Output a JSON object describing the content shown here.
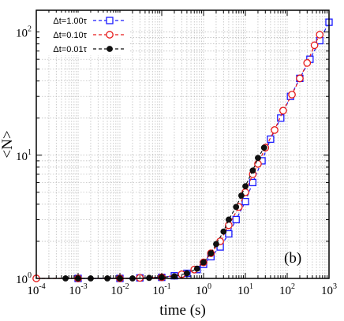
{
  "chart_data": {
    "type": "line",
    "xlabel": "time (s)",
    "ylabel": "<N>",
    "panel_label": "(b)",
    "xscale": "log",
    "yscale": "log",
    "xlim": [
      0.0001,
      1000
    ],
    "ylim": [
      1,
      150
    ],
    "grid": true,
    "legend_position": "top-left",
    "x_ticks": [
      {
        "base": "10",
        "exp": "-4"
      },
      {
        "base": "10",
        "exp": "-3"
      },
      {
        "base": "10",
        "exp": "-2"
      },
      {
        "base": "10",
        "exp": "-1"
      },
      {
        "base": "10",
        "exp": "0"
      },
      {
        "base": "10",
        "exp": "1"
      },
      {
        "base": "10",
        "exp": "2"
      },
      {
        "base": "10",
        "exp": "3"
      }
    ],
    "y_ticks": [
      {
        "base": "10",
        "exp": "0"
      },
      {
        "base": "10",
        "exp": "1"
      },
      {
        "base": "10",
        "exp": "2"
      }
    ],
    "series": [
      {
        "name": "Δt=1.00τ",
        "color": "#1a1aff",
        "marker": "square-open",
        "x": [
          0.001,
          0.01,
          0.03,
          0.1,
          0.2,
          0.4,
          0.7,
          1.0,
          1.5,
          2.5,
          4.0,
          6.0,
          10,
          15,
          25,
          40,
          70,
          120,
          200,
          350,
          600,
          1000
        ],
        "y": [
          1.0,
          1.0,
          1.01,
          1.02,
          1.05,
          1.1,
          1.18,
          1.3,
          1.5,
          1.8,
          2.3,
          3.0,
          4.2,
          6.0,
          9.0,
          13.5,
          20,
          30,
          42,
          60,
          85,
          120
        ]
      },
      {
        "name": "Δt=0.10τ",
        "color": "#e61a1a",
        "marker": "circle-open",
        "x": [
          0.0001,
          0.001,
          0.01,
          0.03,
          0.1,
          0.3,
          0.6,
          1.0,
          1.5,
          2.5,
          4.0,
          7.0,
          10,
          15,
          20,
          30,
          50,
          80,
          130,
          200,
          300,
          450,
          600
        ],
        "y": [
          1.0,
          1.0,
          1.0,
          1.01,
          1.02,
          1.08,
          1.18,
          1.35,
          1.6,
          2.0,
          2.7,
          3.8,
          5.0,
          7.0,
          8.5,
          11.5,
          16,
          23,
          31,
          42,
          56,
          78,
          95
        ]
      },
      {
        "name": "Δt=0.01τ",
        "color": "#111111",
        "marker": "circle-filled",
        "x": [
          0.0005,
          0.001,
          0.002,
          0.005,
          0.01,
          0.02,
          0.05,
          0.1,
          0.2,
          0.4,
          0.7,
          1.0,
          1.5,
          2.0,
          3.0,
          4.0,
          6.0,
          8.0,
          10,
          15,
          20,
          28
        ],
        "y": [
          1.0,
          1.0,
          1.0,
          1.0,
          1.0,
          1.0,
          1.01,
          1.02,
          1.04,
          1.1,
          1.2,
          1.35,
          1.6,
          1.9,
          2.4,
          3.0,
          3.8,
          4.7,
          5.6,
          7.5,
          9.5,
          11.5
        ]
      }
    ]
  }
}
